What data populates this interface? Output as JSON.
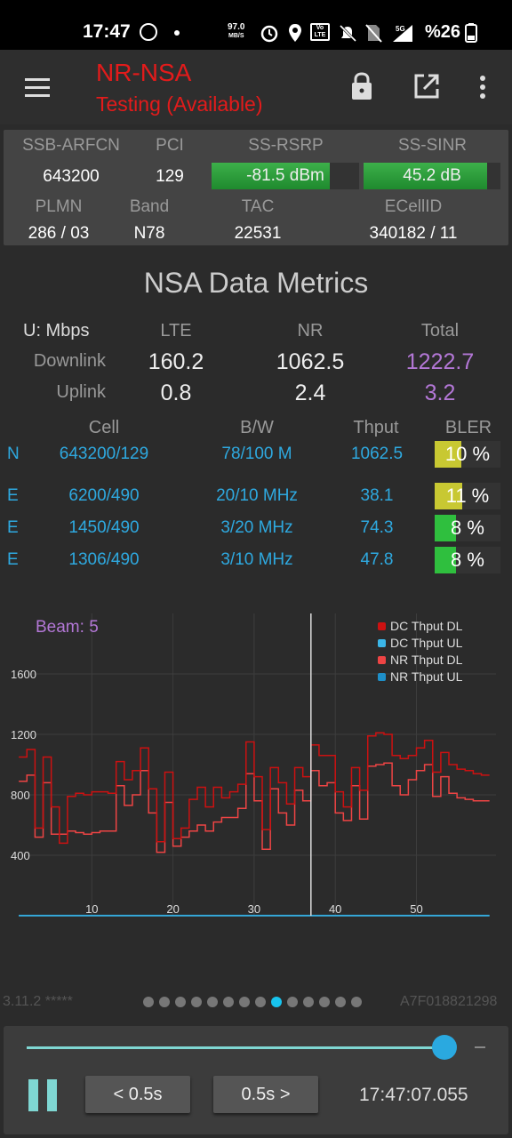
{
  "status_bar": {
    "time": "17:47",
    "net_speed": "97.0",
    "net_speed_unit": "MB/S",
    "volte_label": "Vo LTE",
    "network_type": "5G",
    "battery": "%26"
  },
  "app_bar": {
    "title": "NR-NSA",
    "subtitle": "Testing (Available)",
    "title_color": "#e31b1b"
  },
  "cell_info": {
    "headers_row1": [
      "SSB-ARFCN",
      "PCI",
      "SS-RSRP",
      "SS-SINR"
    ],
    "arfcn": "643200",
    "pci": "129",
    "rsrp": "-81.5 dBm",
    "rsrp_level": 0.8,
    "sinr": "45.2 dB",
    "sinr_level": 0.9,
    "headers_row2": [
      "PLMN",
      "Band",
      "TAC",
      "ECellID"
    ],
    "plmn": "286 / 03",
    "band": "N78",
    "tac": "22531",
    "ecellid": "340182 / 11"
  },
  "metrics": {
    "title": "NSA Data Metrics",
    "unit_label": "U: Mbps",
    "col_lte": "LTE",
    "col_nr": "NR",
    "col_total": "Total",
    "downlink_label": "Downlink",
    "uplink_label": "Uplink",
    "dl_lte": "160.2",
    "dl_nr": "1062.5",
    "dl_total": "1222.7",
    "ul_lte": "0.8",
    "ul_nr": "2.4",
    "ul_total": "3.2",
    "total_color": "#b377d6"
  },
  "cells_table": {
    "headers": [
      "Cell",
      "B/W",
      "Thput",
      "BLER"
    ],
    "rows": [
      {
        "type": "N",
        "cell": "643200/129",
        "bw": "78/100 M",
        "thput": "1062.5",
        "bler": "10 %",
        "bler_level": 0.4,
        "bler_color": "#c8c832"
      },
      {
        "type": "E",
        "cell": "6200/490",
        "bw": "20/10 MHz",
        "thput": "38.1",
        "bler": "11 %",
        "bler_level": 0.42,
        "bler_color": "#c8c832"
      },
      {
        "type": "E",
        "cell": "1450/490",
        "bw": "3/20 MHz",
        "thput": "74.3",
        "bler": "8 %",
        "bler_level": 0.33,
        "bler_color": "#2fbf3e"
      },
      {
        "type": "E",
        "cell": "1306/490",
        "bw": "3/10 MHz",
        "thput": "47.8",
        "bler": "8 %",
        "bler_level": 0.33,
        "bler_color": "#2fbf3e"
      }
    ]
  },
  "chart_data": {
    "type": "line",
    "beam_label": "Beam: 5",
    "y_ticks": [
      400,
      800,
      1200,
      1600
    ],
    "x_ticks": [
      10,
      20,
      30,
      40,
      50
    ],
    "ylim": [
      0,
      2000
    ],
    "xlim": [
      0,
      59
    ],
    "cursor_x": 37,
    "grid": true,
    "legend_position": "top-right",
    "series": [
      {
        "name": "DC Thput DL",
        "color": "#cc1111",
        "values": [
          1050,
          1100,
          580,
          1050,
          720,
          480,
          790,
          810,
          800,
          820,
          820,
          810,
          1020,
          900,
          960,
          1110,
          840,
          490,
          950,
          510,
          580,
          770,
          850,
          720,
          850,
          780,
          820,
          870,
          1150,
          920,
          570,
          980,
          880,
          740,
          980,
          920,
          1130,
          1060,
          1060,
          820,
          720,
          980,
          830,
          1190,
          1210,
          1200,
          1060,
          1040,
          1060,
          1110,
          1160,
          950,
          1080,
          1000,
          970,
          960,
          940,
          930
        ]
      },
      {
        "name": "DC Thput UL",
        "color": "#3bb6e8",
        "values": [
          0,
          0,
          0,
          0,
          0,
          0,
          0,
          0,
          0,
          0,
          0,
          0,
          0,
          0,
          0,
          0,
          0,
          0,
          0,
          0,
          0,
          0,
          0,
          0,
          0,
          0,
          0,
          0,
          0,
          0,
          0,
          0,
          0,
          0,
          0,
          0,
          0,
          0,
          0,
          0,
          0,
          0,
          0,
          0,
          0,
          0,
          0,
          0,
          0,
          0,
          0,
          0,
          0,
          0,
          0,
          0,
          0,
          0
        ]
      },
      {
        "name": "NR Thput DL",
        "color": "#ee4444",
        "values": [
          890,
          930,
          520,
          880,
          540,
          540,
          560,
          550,
          540,
          550,
          560,
          560,
          860,
          730,
          800,
          960,
          680,
          420,
          750,
          460,
          520,
          560,
          600,
          560,
          620,
          650,
          650,
          710,
          940,
          760,
          440,
          840,
          680,
          600,
          830,
          760,
          960,
          860,
          880,
          680,
          630,
          860,
          640,
          990,
          1000,
          1010,
          860,
          800,
          900,
          960,
          1000,
          790,
          920,
          810,
          780,
          770,
          760,
          760
        ]
      },
      {
        "name": "NR Thput UL",
        "color": "#1e8fc8",
        "values": [
          2,
          2,
          2,
          2,
          2,
          2,
          2,
          2,
          2,
          2,
          2,
          2,
          2,
          2,
          2,
          2,
          2,
          2,
          2,
          2,
          2,
          2,
          2,
          2,
          2,
          2,
          2,
          2,
          2,
          2,
          2,
          2,
          2,
          2,
          2,
          2,
          2,
          2,
          2,
          2,
          2,
          2,
          2,
          2,
          2,
          2,
          2,
          2,
          2,
          2,
          2,
          2,
          2,
          2,
          2,
          2,
          2,
          2
        ]
      }
    ]
  },
  "footer": {
    "version": "3.11.2 *****",
    "device_id": "A7F018821298",
    "page_count": 14,
    "active_page": 8
  },
  "playback": {
    "position": 0.96,
    "prev_label": "< 0.5s",
    "next_label": "0.5s >",
    "timestamp": "17:47:07.055",
    "accent": "#7fd7d3"
  }
}
